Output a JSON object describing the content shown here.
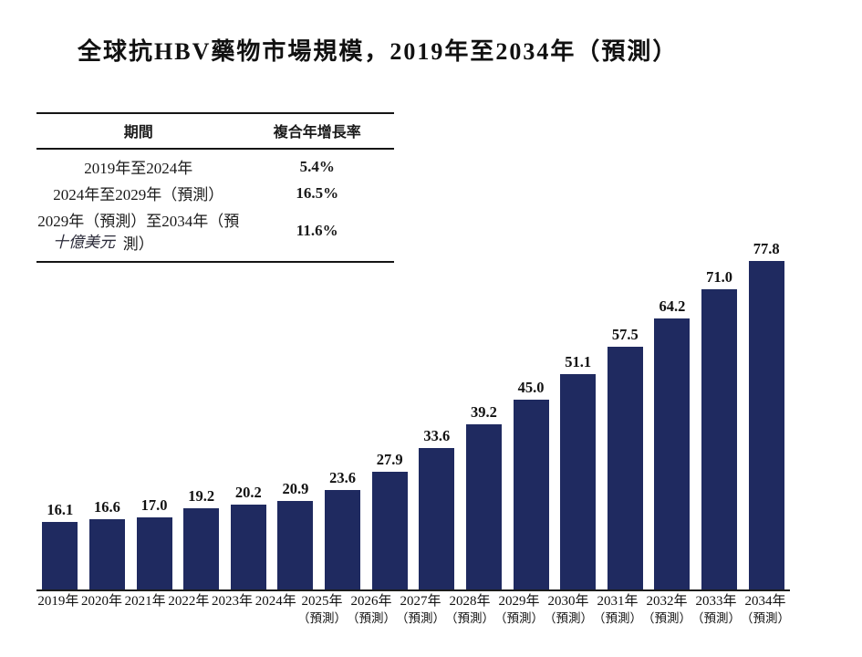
{
  "title": "全球抗HBV藥物市場規模，2019年至2034年（預測）",
  "cagr_table": {
    "headers": {
      "period": "期間",
      "cagr": "複合年增長率"
    },
    "rows": [
      {
        "period": "2019年至2024年",
        "cagr": "5.4%"
      },
      {
        "period": "2024年至2029年（預測）",
        "cagr": "16.5%"
      },
      {
        "period": "2029年（預測）至2034年（預測）",
        "cagr": "11.6%"
      }
    ]
  },
  "unit_label": "十億美元",
  "colors": {
    "bar": "#1F2A60",
    "axis": "#1c1c1c",
    "text": "#111111"
  },
  "chart_data": {
    "type": "bar",
    "title": "全球抗HBV藥物市場規模，2019年至2034年（預測）",
    "ylabel": "十億美元",
    "xlabel": "",
    "categories": [
      "2019年",
      "2020年",
      "2021年",
      "2022年",
      "2023年",
      "2024年",
      "2025年",
      "2026年",
      "2027年",
      "2028年",
      "2029年",
      "2030年",
      "2031年",
      "2032年",
      "2033年",
      "2034年"
    ],
    "values": [
      16.1,
      16.6,
      17.0,
      19.2,
      20.2,
      20.9,
      23.6,
      27.9,
      33.6,
      39.2,
      45.0,
      51.1,
      57.5,
      64.2,
      71.0,
      77.8
    ],
    "forecast_label": "（預測）",
    "forecast_from_index": 6,
    "data_labels": true,
    "grid": false,
    "legend_position": "none",
    "ylim": [
      0,
      77.8
    ],
    "bar_color": "#1F2A60"
  }
}
